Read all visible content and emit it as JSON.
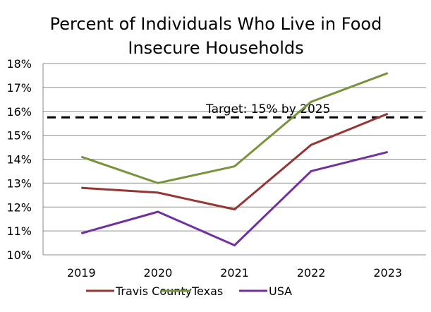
{
  "chart_data": {
    "type": "line",
    "title": "Percent of Individuals Who Live in Food Insecure Households",
    "title_lines": [
      "Percent of Individuals Who Live in Food",
      "Insecure Households"
    ],
    "xlabel": "",
    "ylabel": "",
    "categories": [
      "2019",
      "2020",
      "2021",
      "2022",
      "2023"
    ],
    "ylim": [
      10,
      18
    ],
    "yticks": [
      10,
      11,
      12,
      13,
      14,
      15,
      16,
      17,
      18
    ],
    "ytick_labels": [
      "10%",
      "11%",
      "12%",
      "13%",
      "14%",
      "15%",
      "16%",
      "17%",
      "18%"
    ],
    "grid": true,
    "legend_position": "bottom",
    "series": [
      {
        "name": "Travis County",
        "color": "#943634",
        "values": [
          12.8,
          12.6,
          11.9,
          14.6,
          15.9
        ]
      },
      {
        "name": "Texas",
        "color": "#77933C",
        "values": [
          14.1,
          13.0,
          13.7,
          16.4,
          17.6
        ]
      },
      {
        "name": "USA",
        "color": "#7030A0",
        "values": [
          10.9,
          11.8,
          10.4,
          13.5,
          14.3
        ]
      }
    ],
    "reference_line": {
      "value": 15.75,
      "style": "dashed",
      "color": "#000000"
    },
    "annotation": "Target: 15% by 2025"
  }
}
